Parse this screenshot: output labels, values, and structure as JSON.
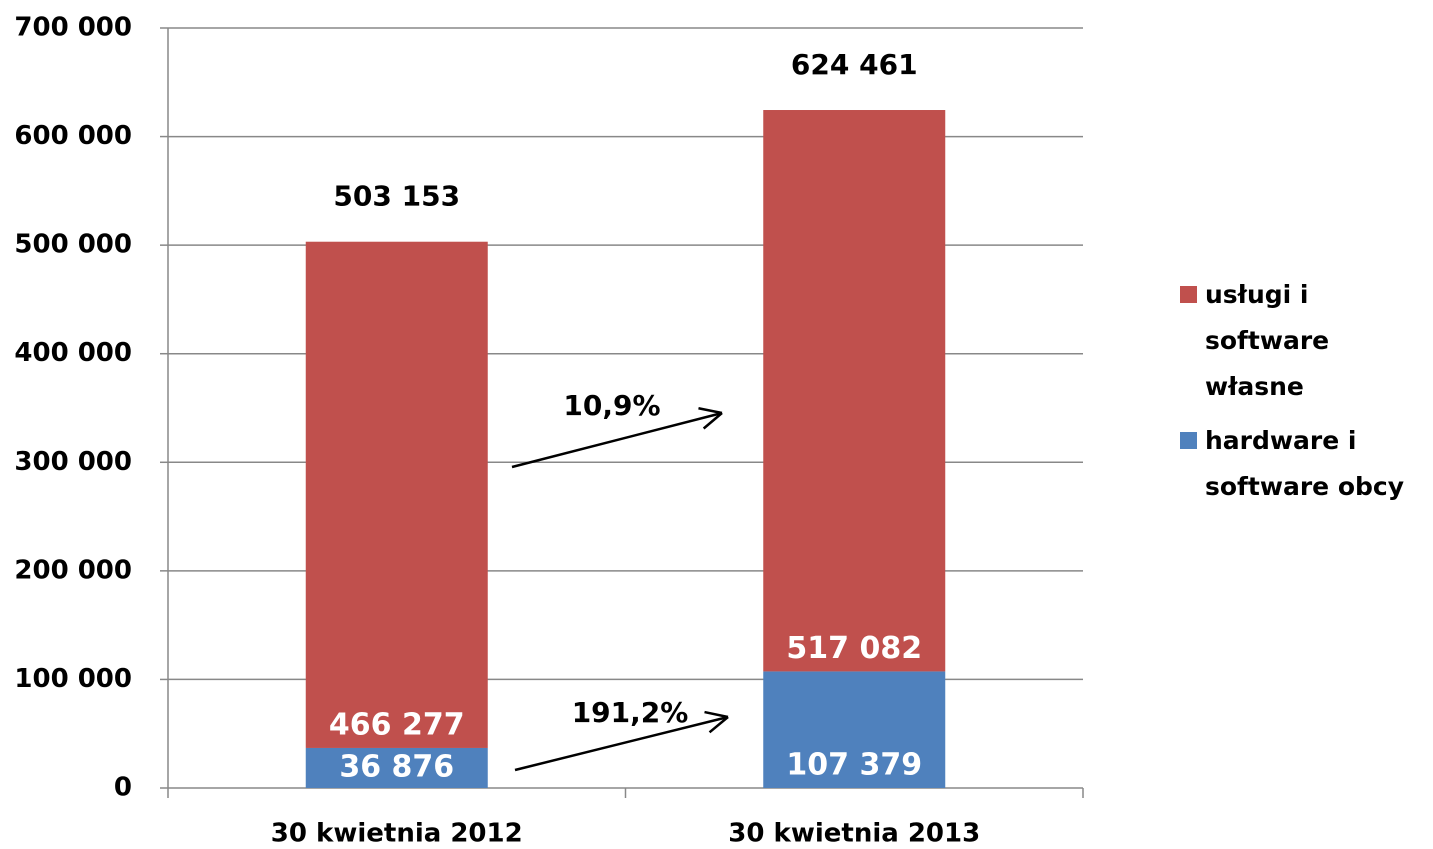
{
  "chart_data": {
    "type": "stacked_bar",
    "categories": [
      "30 kwietnia 2012",
      "30 kwietnia 2013"
    ],
    "series": [
      {
        "name": "hardware i software obcy",
        "color": "#4f81bd",
        "values": [
          36876,
          107379
        ],
        "value_labels": [
          "36 876",
          "107 379"
        ]
      },
      {
        "name": "usługi i software własne",
        "color": "#c0504d",
        "values": [
          466277,
          517082
        ],
        "value_labels": [
          "466 277",
          "517 082"
        ]
      }
    ],
    "totals": [
      503153,
      624461
    ],
    "totals_labels": [
      "503 153",
      "624 461"
    ],
    "annotations": [
      "10,9%",
      "191,2%"
    ],
    "ylim": [
      0,
      700000
    ],
    "yticks": [
      0,
      {
        "value": 100000,
        "label": "100 000"
      },
      {
        "value": 200000,
        "label": "200 000"
      },
      {
        "value": 300000,
        "label": "300 000"
      },
      {
        "value": 400000,
        "label": "400 000"
      },
      {
        "value": 500000,
        "label": "500 000"
      },
      {
        "value": 600000,
        "label": "600 000"
      },
      {
        "value": 700000,
        "label": "700 000"
      }
    ],
    "grid": true,
    "legend": "right"
  }
}
